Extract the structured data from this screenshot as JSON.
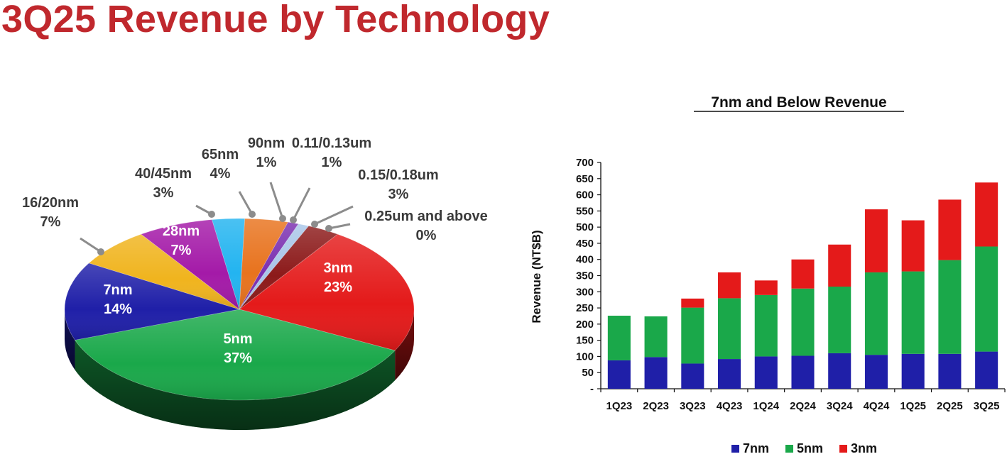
{
  "page": {
    "title": "3Q25 Revenue by Technology"
  },
  "chart_data": [
    {
      "type": "pie",
      "slices": [
        {
          "name": "3nm",
          "label": "3nm",
          "pct_label": "23%",
          "value": 23,
          "color": "#e41a1a"
        },
        {
          "name": "5nm",
          "label": "5nm",
          "pct_label": "37%",
          "value": 37,
          "color": "#1aa84a"
        },
        {
          "name": "7nm",
          "label": "7nm",
          "pct_label": "14%",
          "value": 14,
          "color": "#1f1fa8"
        },
        {
          "name": "16/20nm",
          "label": "16/20nm",
          "pct_label": "7%",
          "value": 7,
          "color": "#f0b41e"
        },
        {
          "name": "28nm",
          "label": "28nm",
          "pct_label": "7%",
          "value": 7,
          "color": "#a41aa8"
        },
        {
          "name": "40/45nm",
          "label": "40/45nm",
          "pct_label": "3%",
          "value": 3,
          "color": "#23b4f0"
        },
        {
          "name": "65nm",
          "label": "65nm",
          "pct_label": "4%",
          "value": 4,
          "color": "#e8731e"
        },
        {
          "name": "90nm",
          "label": "90nm",
          "pct_label": "1%",
          "value": 1,
          "color": "#7a2fb0"
        },
        {
          "name": "0.11/0.13um",
          "label": "0.11/0.13um",
          "pct_label": "1%",
          "value": 1,
          "color": "#a9c6e8"
        },
        {
          "name": "0.15/0.18um",
          "label": "0.15/0.18um",
          "pct_label": "3%",
          "value": 3,
          "color": "#8c1a1a"
        },
        {
          "name": "0.25um and above",
          "label": "0.25um and above",
          "pct_label": "0%",
          "value": 0,
          "color": "#c0c0c0"
        }
      ]
    },
    {
      "type": "bar",
      "stacked": true,
      "title": "7nm and Below Revenue",
      "ylabel": "Revenue (NT$B)",
      "ylim": [
        0,
        700
      ],
      "yticks": [
        "-",
        "50",
        "100",
        "150",
        "200",
        "250",
        "300",
        "350",
        "400",
        "450",
        "500",
        "550",
        "600",
        "650",
        "700"
      ],
      "categories": [
        "1Q23",
        "2Q23",
        "3Q23",
        "4Q23",
        "1Q24",
        "2Q24",
        "3Q24",
        "4Q24",
        "1Q25",
        "2Q25",
        "3Q25"
      ],
      "series": [
        {
          "name": "7nm",
          "color": "#1f1fa8",
          "values": [
            88,
            98,
            78,
            92,
            100,
            102,
            110,
            105,
            108,
            108,
            115
          ]
        },
        {
          "name": "5nm",
          "color": "#1aa84a",
          "values": [
            138,
            126,
            173,
            188,
            190,
            208,
            206,
            255,
            255,
            290,
            325
          ]
        },
        {
          "name": "3nm",
          "color": "#e41a1a",
          "values": [
            0,
            0,
            28,
            80,
            45,
            90,
            130,
            195,
            158,
            187,
            198
          ]
        }
      ],
      "legend_position": "bottom",
      "grid": false
    }
  ]
}
